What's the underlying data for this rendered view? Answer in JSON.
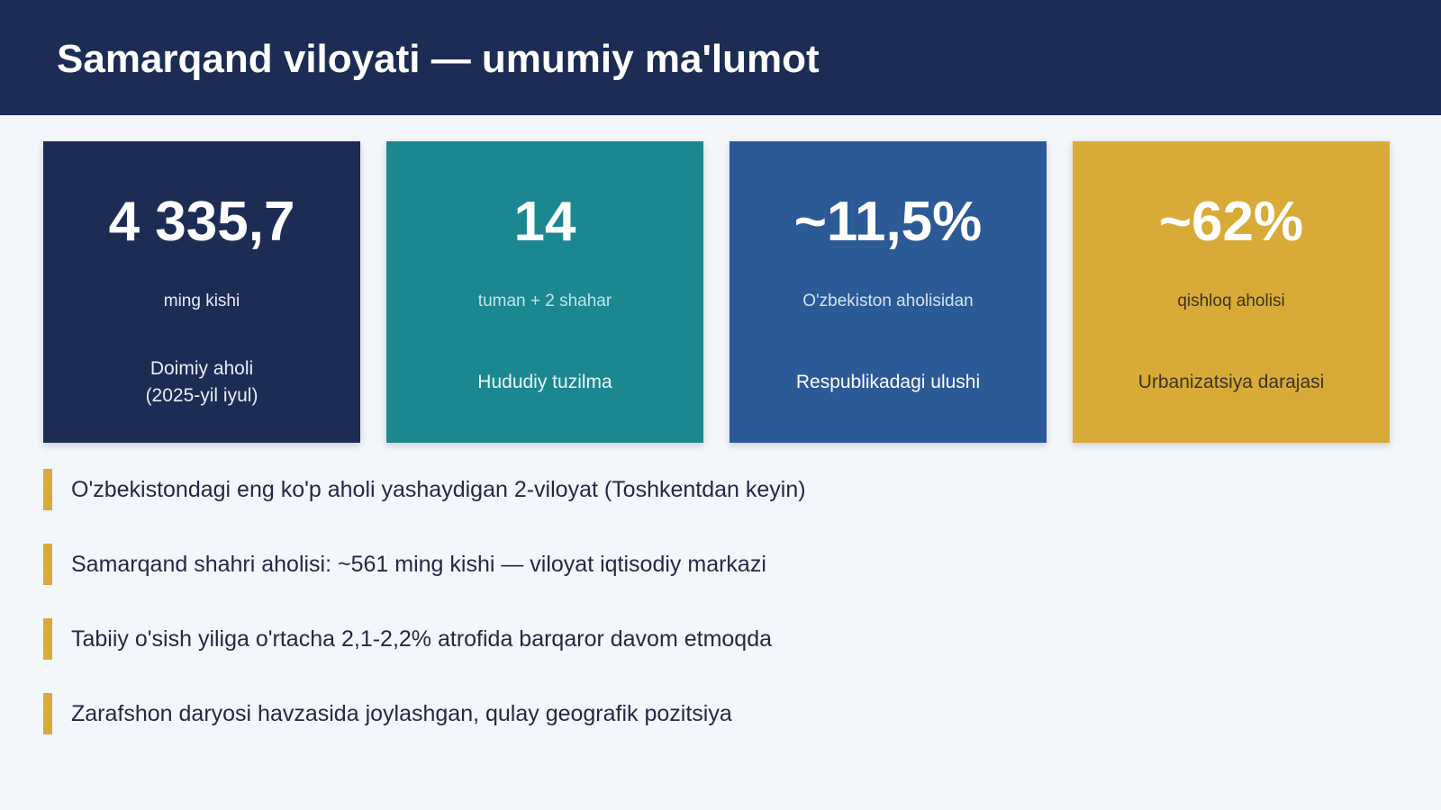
{
  "header": {
    "title": "Samarqand viloyati — umumiy ma'lumot"
  },
  "cards": [
    {
      "value": "4 335,7",
      "unit": "ming kishi",
      "caption_line1": "Doimiy aholi",
      "caption_line2": "(2025-yil iyul)",
      "color": "#1c2c54"
    },
    {
      "value": "14",
      "unit": "tuman + 2 shahar",
      "caption": "Hududiy tuzilma",
      "color": "#1b8891"
    },
    {
      "value": "~11,5%",
      "unit": "O'zbekiston aholisidan",
      "caption": "Respublikadagi ulushi",
      "color": "#2c5a97"
    },
    {
      "value": "~62%",
      "unit": "qishloq aholisi",
      "caption": "Urbanizatsiya darajasi",
      "color": "#d8ab38"
    }
  ],
  "bullets": [
    "O'zbekistondagi eng ko'p aholi yashaydigan 2-viloyat (Toshkentdan keyin)",
    "Samarqand shahri aholisi: ~561 ming kishi — viloyat iqtisodiy markazi",
    "Tabiiy o'sish yiliga o'rtacha 2,1-2,2% atrofida barqaror davom etmoqda",
    "Zarafshon daryosi havzasida joylashgan, qulay geografik pozitsiya"
  ],
  "accent_color": "#d8ab38"
}
